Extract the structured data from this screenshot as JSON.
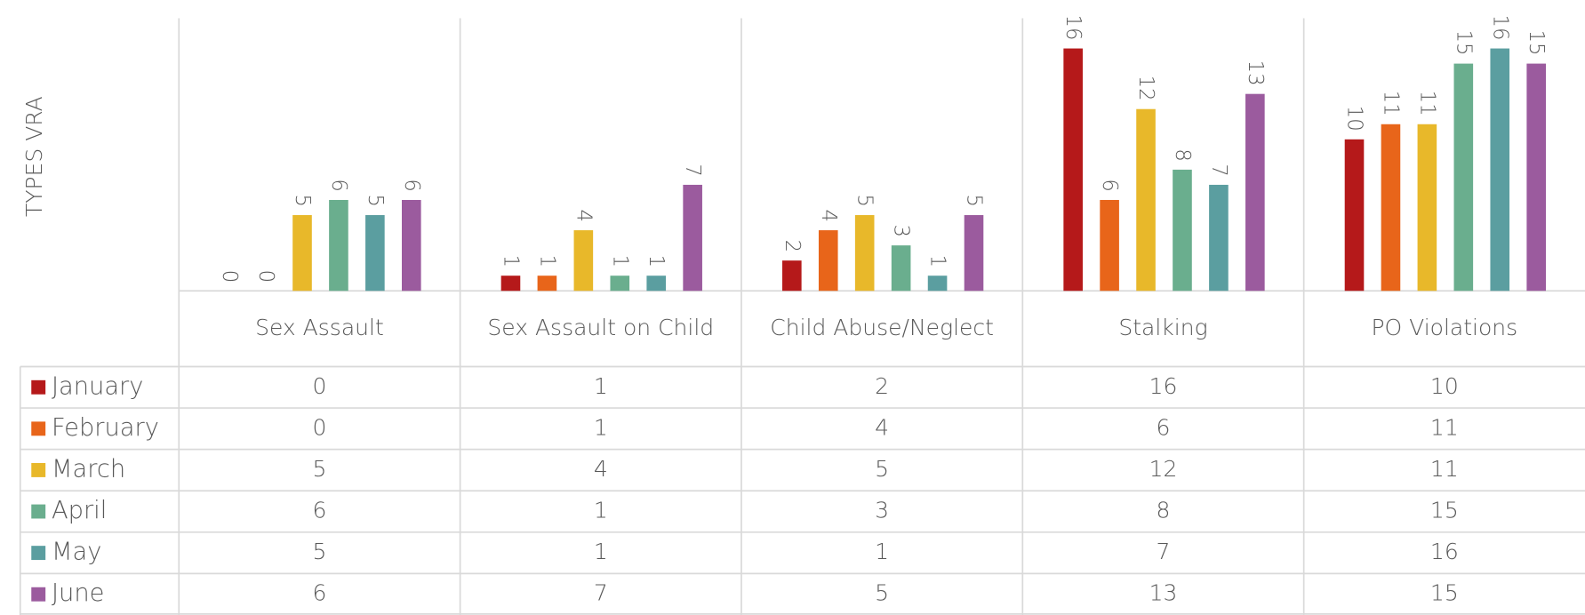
{
  "chart_data": {
    "type": "bar",
    "y_axis_label": "TYPES VRA",
    "categories": [
      "Sex Assault",
      "Sex Assault on Child",
      "Child Abuse/Neglect",
      "Stalking",
      "PO Violations"
    ],
    "series": [
      {
        "name": "January",
        "color": "#b5191a",
        "values": [
          0,
          1,
          2,
          16,
          10
        ]
      },
      {
        "name": "February",
        "color": "#e8651a",
        "values": [
          0,
          1,
          4,
          6,
          11
        ]
      },
      {
        "name": "March",
        "color": "#e8b82a",
        "values": [
          5,
          4,
          5,
          12,
          11
        ]
      },
      {
        "name": "April",
        "color": "#6aae8e",
        "values": [
          6,
          1,
          3,
          8,
          15
        ]
      },
      {
        "name": "May",
        "color": "#5b9ea0",
        "values": [
          5,
          1,
          1,
          7,
          16
        ]
      },
      {
        "name": "June",
        "color": "#9b5b9e",
        "values": [
          6,
          7,
          5,
          13,
          15
        ]
      }
    ],
    "ylim": [
      0,
      18
    ],
    "data_table": true
  }
}
